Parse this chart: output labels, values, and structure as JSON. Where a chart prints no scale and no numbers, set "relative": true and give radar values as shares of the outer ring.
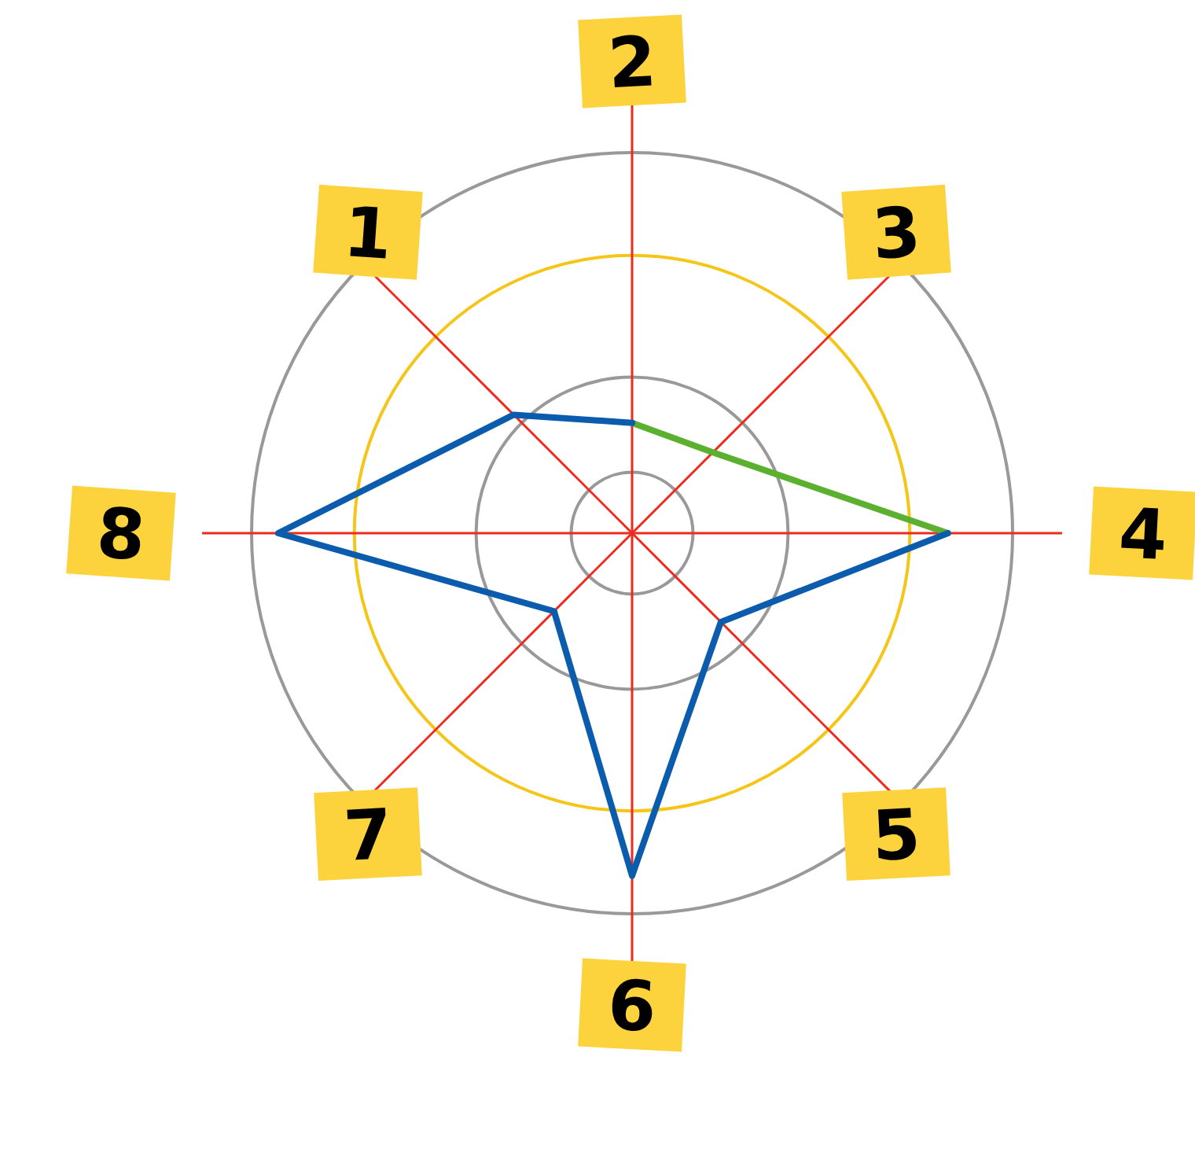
{
  "chart_data": {
    "type": "radar",
    "relative": true,
    "categories": [
      "2",
      "3",
      "4",
      "5",
      "6",
      "7",
      "8",
      "1"
    ],
    "series": [
      {
        "color": "#5bb030",
        "values": [
          0.29,
          0.3,
          0.83,
          null,
          null,
          null,
          null,
          null
        ]
      },
      {
        "color": "#0b5cad",
        "values": [
          0.29,
          null,
          0.83,
          0.33,
          0.9,
          0.29,
          0.93,
          0.44
        ]
      }
    ],
    "grid": true
  }
}
